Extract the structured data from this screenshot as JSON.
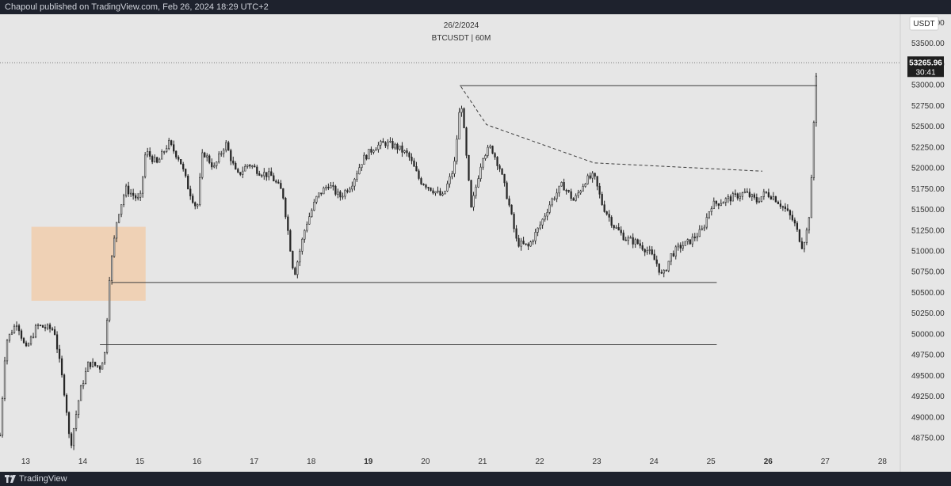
{
  "header": {
    "published_text": "Chapoul published on TradingView.com, Feb 26, 2024 18:29 UTC+2"
  },
  "footer": {
    "brand": "TradingView"
  },
  "chart_data": {
    "type": "candlestick",
    "title": "26/2/2024",
    "symbol_label": "BTCUSDT | 60M",
    "currency": "USDT",
    "last_price": "53265.96",
    "countdown": "30:41",
    "ylim": [
      48550,
      53850
    ],
    "xlim": [
      12.55,
      28.3
    ],
    "y_ticks": [
      {
        "value": 53750,
        "label": "53750.00"
      },
      {
        "value": 53500,
        "label": "53500.00"
      },
      {
        "value": 53250,
        "label": "53250.00"
      },
      {
        "value": 53000,
        "label": "53000.00"
      },
      {
        "value": 52750,
        "label": "52750.00"
      },
      {
        "value": 52500,
        "label": "52500.00"
      },
      {
        "value": 52250,
        "label": "52250.00"
      },
      {
        "value": 52000,
        "label": "52000.00"
      },
      {
        "value": 51750,
        "label": "51750.00"
      },
      {
        "value": 51500,
        "label": "51500.00"
      },
      {
        "value": 51250,
        "label": "51250.00"
      },
      {
        "value": 51000,
        "label": "51000.00"
      },
      {
        "value": 50750,
        "label": "50750.00"
      },
      {
        "value": 50500,
        "label": "50500.00"
      },
      {
        "value": 50250,
        "label": "50250.00"
      },
      {
        "value": 50000,
        "label": "50000.00"
      },
      {
        "value": 49750,
        "label": "49750.00"
      },
      {
        "value": 49500,
        "label": "49500.00"
      },
      {
        "value": 49250,
        "label": "49250.00"
      },
      {
        "value": 49000,
        "label": "49000.00"
      },
      {
        "value": 48750,
        "label": "48750.00"
      }
    ],
    "x_ticks": [
      {
        "value": 13,
        "label": "13",
        "bold": false
      },
      {
        "value": 14,
        "label": "14",
        "bold": false
      },
      {
        "value": 15,
        "label": "15",
        "bold": false
      },
      {
        "value": 16,
        "label": "16",
        "bold": false
      },
      {
        "value": 17,
        "label": "17",
        "bold": false
      },
      {
        "value": 18,
        "label": "18",
        "bold": false
      },
      {
        "value": 19,
        "label": "19",
        "bold": true
      },
      {
        "value": 20,
        "label": "20",
        "bold": false
      },
      {
        "value": 21,
        "label": "21",
        "bold": false
      },
      {
        "value": 22,
        "label": "22",
        "bold": false
      },
      {
        "value": 23,
        "label": "23",
        "bold": false
      },
      {
        "value": 24,
        "label": "24",
        "bold": false
      },
      {
        "value": 25,
        "label": "25",
        "bold": false
      },
      {
        "value": 26,
        "label": "26",
        "bold": true
      },
      {
        "value": 27,
        "label": "27",
        "bold": false
      },
      {
        "value": 28,
        "label": "28",
        "bold": false
      }
    ],
    "anchors": [
      [
        12.55,
        48780
      ],
      [
        12.65,
        49900
      ],
      [
        12.85,
        50150
      ],
      [
        13.0,
        49800
      ],
      [
        13.2,
        50100
      ],
      [
        13.5,
        50050
      ],
      [
        13.7,
        49200
      ],
      [
        13.78,
        48620
      ],
      [
        13.95,
        49300
      ],
      [
        14.1,
        49650
      ],
      [
        14.3,
        49600
      ],
      [
        14.4,
        49800
      ],
      [
        14.45,
        50600
      ],
      [
        14.6,
        51400
      ],
      [
        14.75,
        51750
      ],
      [
        15.0,
        51600
      ],
      [
        15.1,
        52200
      ],
      [
        15.3,
        52050
      ],
      [
        15.5,
        52300
      ],
      [
        15.7,
        52100
      ],
      [
        15.85,
        51750
      ],
      [
        16.0,
        51500
      ],
      [
        16.1,
        52200
      ],
      [
        16.3,
        52000
      ],
      [
        16.5,
        52300
      ],
      [
        16.7,
        51900
      ],
      [
        16.9,
        52050
      ],
      [
        17.1,
        51950
      ],
      [
        17.3,
        51900
      ],
      [
        17.5,
        51700
      ],
      [
        17.7,
        50700
      ],
      [
        17.9,
        51300
      ],
      [
        18.1,
        51650
      ],
      [
        18.3,
        51800
      ],
      [
        18.5,
        51650
      ],
      [
        18.7,
        51800
      ],
      [
        18.9,
        52100
      ],
      [
        19.1,
        52250
      ],
      [
        19.3,
        52300
      ],
      [
        19.5,
        52250
      ],
      [
        19.7,
        52150
      ],
      [
        19.9,
        51850
      ],
      [
        20.1,
        51750
      ],
      [
        20.3,
        51650
      ],
      [
        20.5,
        52000
      ],
      [
        20.62,
        52850
      ],
      [
        20.8,
        51500
      ],
      [
        21.0,
        52150
      ],
      [
        21.15,
        52250
      ],
      [
        21.3,
        52000
      ],
      [
        21.45,
        51600
      ],
      [
        21.6,
        51100
      ],
      [
        21.8,
        51050
      ],
      [
        22.0,
        51300
      ],
      [
        22.2,
        51600
      ],
      [
        22.4,
        51800
      ],
      [
        22.6,
        51600
      ],
      [
        22.8,
        51850
      ],
      [
        22.95,
        51900
      ],
      [
        23.1,
        51550
      ],
      [
        23.3,
        51300
      ],
      [
        23.5,
        51150
      ],
      [
        23.7,
        51100
      ],
      [
        23.9,
        51000
      ],
      [
        24.05,
        50850
      ],
      [
        24.15,
        50680
      ],
      [
        24.3,
        50950
      ],
      [
        24.45,
        51050
      ],
      [
        24.6,
        51100
      ],
      [
        24.85,
        51250
      ],
      [
        25.0,
        51550
      ],
      [
        25.2,
        51600
      ],
      [
        25.4,
        51650
      ],
      [
        25.6,
        51700
      ],
      [
        25.8,
        51600
      ],
      [
        25.95,
        51700
      ],
      [
        26.1,
        51650
      ],
      [
        26.3,
        51500
      ],
      [
        26.45,
        51350
      ],
      [
        26.6,
        51050
      ],
      [
        26.7,
        51300
      ],
      [
        26.75,
        51700
      ],
      [
        26.8,
        52550
      ],
      [
        26.85,
        53250
      ]
    ],
    "zone": {
      "x0": 13.1,
      "x1": 15.1,
      "y0": 50400,
      "y1": 51290,
      "color": "#f2c9a4"
    },
    "hlines": [
      {
        "x0": 20.6,
        "x1": 26.85,
        "y": 52990
      },
      {
        "x0": 14.5,
        "x1": 25.1,
        "y": 50620
      },
      {
        "x0": 14.3,
        "x1": 25.1,
        "y": 49870
      }
    ],
    "dashed_line": [
      [
        20.62,
        52980
      ],
      [
        21.07,
        52520
      ],
      [
        22.95,
        52060
      ],
      [
        25.9,
        51960
      ]
    ],
    "colors": {
      "candle": "#262626",
      "line": "#3c3c3c",
      "background": "#e6e6e6",
      "price_tag": "#1f1f1f"
    }
  }
}
